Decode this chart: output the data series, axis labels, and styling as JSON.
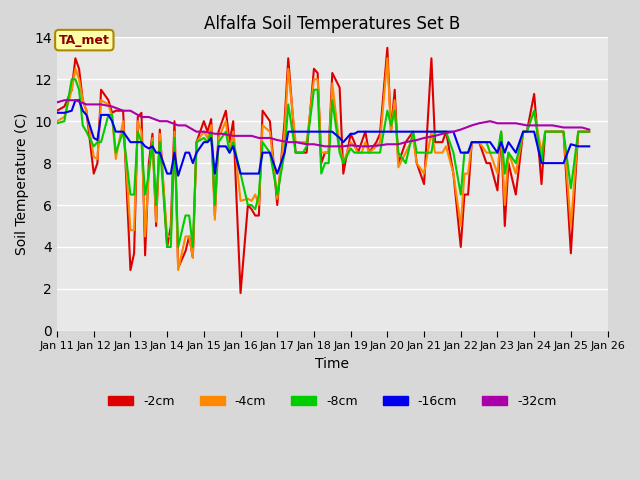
{
  "title": "Alfalfa Soil Temperatures Set B",
  "xlabel": "Time",
  "ylabel": "Soil Temperature (C)",
  "ylim": [
    0,
    14
  ],
  "yticks": [
    0,
    2,
    4,
    6,
    8,
    10,
    12,
    14
  ],
  "bg_color": "#e8e8e8",
  "plot_bg": "#f0f0f0",
  "annotation_label": "TA_met",
  "series": {
    "-2cm": {
      "color": "#dd0000",
      "x": [
        11.0,
        11.2,
        11.4,
        11.5,
        11.6,
        11.7,
        11.8,
        12.0,
        12.1,
        12.2,
        12.4,
        12.5,
        12.6,
        12.8,
        13.0,
        13.1,
        13.2,
        13.3,
        13.4,
        13.5,
        13.6,
        13.7,
        13.8,
        14.0,
        14.1,
        14.2,
        14.3,
        14.5,
        14.6,
        14.7,
        14.8,
        15.0,
        15.1,
        15.2,
        15.3,
        15.4,
        15.6,
        15.7,
        15.8,
        16.0,
        16.2,
        16.3,
        16.4,
        16.5,
        16.6,
        16.8,
        17.0,
        17.2,
        17.3,
        17.5,
        17.7,
        17.8,
        18.0,
        18.1,
        18.2,
        18.3,
        18.4,
        18.5,
        18.7,
        18.8,
        19.0,
        19.1,
        19.2,
        19.3,
        19.4,
        19.5,
        19.7,
        19.8,
        20.0,
        20.1,
        20.2,
        20.3,
        20.5,
        20.7,
        20.8,
        21.0,
        21.2,
        21.3,
        21.4,
        21.5,
        21.6,
        21.8,
        22.0,
        22.1,
        22.2,
        22.3,
        22.4,
        22.5,
        22.7,
        22.8,
        23.0,
        23.1,
        23.2,
        23.3,
        23.5,
        23.7,
        23.8,
        24.0,
        24.2,
        24.3,
        24.5,
        24.7,
        24.8,
        25.0,
        25.2,
        25.5
      ],
      "y": [
        10.5,
        10.7,
        11.5,
        13.0,
        12.5,
        11.0,
        10.5,
        7.5,
        8.0,
        11.5,
        11.0,
        10.4,
        10.5,
        10.5,
        2.9,
        3.7,
        10.2,
        10.4,
        3.6,
        8.0,
        9.4,
        5.0,
        9.6,
        4.0,
        5.0,
        10.0,
        3.0,
        3.8,
        4.5,
        3.5,
        9.0,
        10.0,
        9.5,
        10.1,
        5.5,
        9.5,
        10.5,
        9.0,
        10.0,
        1.8,
        6.0,
        5.8,
        5.5,
        5.5,
        10.5,
        10.0,
        6.0,
        10.0,
        13.0,
        8.5,
        8.5,
        8.5,
        12.5,
        12.3,
        8.0,
        8.5,
        8.5,
        12.3,
        11.6,
        7.5,
        9.4,
        9.0,
        8.5,
        9.0,
        9.5,
        8.5,
        9.0,
        9.4,
        13.5,
        9.5,
        11.5,
        8.0,
        9.0,
        9.5,
        8.0,
        7.0,
        13.0,
        9.0,
        9.0,
        9.0,
        9.5,
        7.5,
        4.0,
        6.5,
        6.5,
        9.0,
        9.0,
        9.0,
        8.0,
        8.0,
        6.7,
        9.5,
        5.0,
        8.0,
        6.5,
        9.5,
        9.5,
        11.3,
        7.0,
        9.5,
        9.5,
        9.5,
        9.5,
        3.7,
        9.5,
        9.5
      ]
    },
    "-4cm": {
      "color": "#ff8800",
      "x": [
        11.0,
        11.2,
        11.4,
        11.5,
        11.6,
        11.7,
        11.8,
        12.0,
        12.1,
        12.2,
        12.4,
        12.5,
        12.6,
        12.8,
        13.0,
        13.1,
        13.2,
        13.3,
        13.4,
        13.5,
        13.6,
        13.7,
        13.8,
        14.0,
        14.1,
        14.2,
        14.3,
        14.5,
        14.6,
        14.7,
        14.8,
        15.0,
        15.1,
        15.2,
        15.3,
        15.4,
        15.6,
        15.7,
        15.8,
        16.0,
        16.2,
        16.3,
        16.4,
        16.5,
        16.6,
        16.8,
        17.0,
        17.2,
        17.3,
        17.5,
        17.7,
        17.8,
        18.0,
        18.1,
        18.2,
        18.3,
        18.4,
        18.5,
        18.7,
        18.8,
        19.0,
        19.1,
        19.2,
        19.3,
        19.4,
        19.5,
        19.7,
        19.8,
        20.0,
        20.1,
        20.2,
        20.3,
        20.5,
        20.7,
        20.8,
        21.0,
        21.2,
        21.3,
        21.4,
        21.5,
        21.6,
        21.8,
        22.0,
        22.1,
        22.2,
        22.3,
        22.4,
        22.5,
        22.7,
        22.8,
        23.0,
        23.1,
        23.2,
        23.3,
        23.5,
        23.7,
        23.8,
        24.0,
        24.2,
        24.3,
        24.5,
        24.7,
        24.8,
        25.0,
        25.2,
        25.5
      ],
      "y": [
        10.0,
        10.2,
        11.5,
        12.5,
        12.0,
        11.0,
        10.5,
        8.3,
        8.2,
        11.0,
        10.8,
        10.2,
        8.2,
        10.0,
        4.8,
        4.8,
        10.0,
        9.5,
        4.5,
        7.5,
        9.2,
        5.2,
        9.4,
        4.5,
        4.5,
        9.5,
        2.9,
        4.5,
        4.5,
        3.5,
        9.0,
        9.5,
        9.2,
        9.8,
        5.3,
        9.2,
        10.0,
        8.5,
        9.5,
        6.2,
        6.3,
        6.2,
        6.5,
        6.0,
        9.8,
        9.5,
        6.3,
        9.5,
        12.5,
        9.0,
        9.0,
        9.0,
        12.0,
        12.0,
        8.5,
        8.5,
        8.5,
        11.8,
        8.8,
        8.0,
        9.0,
        8.8,
        8.5,
        8.5,
        9.0,
        8.5,
        8.8,
        9.0,
        13.0,
        9.5,
        11.0,
        7.8,
        8.5,
        9.2,
        8.0,
        7.5,
        9.5,
        8.5,
        8.5,
        8.5,
        8.8,
        7.5,
        5.0,
        7.5,
        7.5,
        9.0,
        9.0,
        9.0,
        8.5,
        8.5,
        7.5,
        9.5,
        6.0,
        8.5,
        7.5,
        9.5,
        9.5,
        10.5,
        8.5,
        9.5,
        9.5,
        9.5,
        9.5,
        5.0,
        9.5,
        9.5
      ]
    },
    "-8cm": {
      "color": "#00cc00",
      "x": [
        11.0,
        11.2,
        11.4,
        11.5,
        11.6,
        11.7,
        11.8,
        12.0,
        12.1,
        12.2,
        12.4,
        12.5,
        12.6,
        12.8,
        13.0,
        13.1,
        13.2,
        13.3,
        13.4,
        13.5,
        13.6,
        13.7,
        13.8,
        14.0,
        14.1,
        14.2,
        14.3,
        14.5,
        14.6,
        14.7,
        14.8,
        15.0,
        15.1,
        15.2,
        15.3,
        15.4,
        15.6,
        15.7,
        15.8,
        16.0,
        16.2,
        16.3,
        16.4,
        16.5,
        16.6,
        16.8,
        17.0,
        17.2,
        17.3,
        17.5,
        17.7,
        17.8,
        18.0,
        18.1,
        18.2,
        18.3,
        18.4,
        18.5,
        18.7,
        18.8,
        19.0,
        19.1,
        19.2,
        19.3,
        19.4,
        19.5,
        19.7,
        19.8,
        20.0,
        20.1,
        20.2,
        20.3,
        20.5,
        20.7,
        20.8,
        21.0,
        21.2,
        21.3,
        21.4,
        21.5,
        21.6,
        21.8,
        22.0,
        22.1,
        22.2,
        22.3,
        22.4,
        22.5,
        22.7,
        22.8,
        23.0,
        23.1,
        23.2,
        23.3,
        23.5,
        23.7,
        23.8,
        24.0,
        24.2,
        24.3,
        24.5,
        24.7,
        24.8,
        25.0,
        25.2,
        25.5
      ],
      "y": [
        9.9,
        10.0,
        12.0,
        12.0,
        11.5,
        9.8,
        9.5,
        8.8,
        9.0,
        9.0,
        10.3,
        10.3,
        8.5,
        9.5,
        6.5,
        6.5,
        9.5,
        9.0,
        6.5,
        7.5,
        9.0,
        6.0,
        9.0,
        4.0,
        4.0,
        9.2,
        4.0,
        5.5,
        5.5,
        4.0,
        9.0,
        9.2,
        9.0,
        9.5,
        6.0,
        9.0,
        9.5,
        8.5,
        9.0,
        7.5,
        6.0,
        6.0,
        5.8,
        6.5,
        9.0,
        8.5,
        6.5,
        8.5,
        10.8,
        8.5,
        8.5,
        8.8,
        11.5,
        11.5,
        7.5,
        8.0,
        8.0,
        11.0,
        8.5,
        8.0,
        8.7,
        8.5,
        8.5,
        8.5,
        8.5,
        8.5,
        8.5,
        8.5,
        10.5,
        9.8,
        10.5,
        8.5,
        8.0,
        9.5,
        8.5,
        8.5,
        8.5,
        9.5,
        9.5,
        9.5,
        9.5,
        8.5,
        6.5,
        8.5,
        8.5,
        9.0,
        9.0,
        9.0,
        9.0,
        8.5,
        8.5,
        9.5,
        7.5,
        8.5,
        8.0,
        9.5,
        9.5,
        10.5,
        8.0,
        9.5,
        9.5,
        9.5,
        9.5,
        6.8,
        9.5,
        9.5
      ]
    },
    "-16cm": {
      "color": "#0000ee",
      "x": [
        11.0,
        11.2,
        11.4,
        11.5,
        11.6,
        11.7,
        11.8,
        12.0,
        12.1,
        12.2,
        12.4,
        12.5,
        12.6,
        12.8,
        13.0,
        13.1,
        13.2,
        13.3,
        13.4,
        13.5,
        13.6,
        13.7,
        13.8,
        14.0,
        14.1,
        14.2,
        14.3,
        14.5,
        14.6,
        14.7,
        14.8,
        15.0,
        15.1,
        15.2,
        15.3,
        15.4,
        15.6,
        15.7,
        15.8,
        16.0,
        16.2,
        16.3,
        16.4,
        16.5,
        16.6,
        16.8,
        17.0,
        17.2,
        17.3,
        17.5,
        17.7,
        17.8,
        18.0,
        18.1,
        18.2,
        18.3,
        18.4,
        18.5,
        18.7,
        18.8,
        19.0,
        19.1,
        19.2,
        19.3,
        19.4,
        19.5,
        19.7,
        19.8,
        20.0,
        20.1,
        20.2,
        20.3,
        20.5,
        20.7,
        20.8,
        21.0,
        21.2,
        21.3,
        21.4,
        21.5,
        21.6,
        21.8,
        22.0,
        22.1,
        22.2,
        22.3,
        22.4,
        22.5,
        22.7,
        22.8,
        23.0,
        23.1,
        23.2,
        23.3,
        23.5,
        23.7,
        23.8,
        24.0,
        24.2,
        24.3,
        24.5,
        24.7,
        24.8,
        25.0,
        25.2,
        25.5
      ],
      "y": [
        10.4,
        10.4,
        10.5,
        11.0,
        11.0,
        10.5,
        10.3,
        9.2,
        9.1,
        10.3,
        10.3,
        10.0,
        9.5,
        9.5,
        9.0,
        9.0,
        9.0,
        9.0,
        8.8,
        8.7,
        8.8,
        8.5,
        8.5,
        7.5,
        7.5,
        8.5,
        7.4,
        8.5,
        8.5,
        8.0,
        8.5,
        9.0,
        9.0,
        9.2,
        7.5,
        8.8,
        8.8,
        8.5,
        8.8,
        7.5,
        7.5,
        7.5,
        7.5,
        7.5,
        8.5,
        8.5,
        7.5,
        8.5,
        9.5,
        9.5,
        9.5,
        9.5,
        9.5,
        9.5,
        9.5,
        9.5,
        9.5,
        9.5,
        9.2,
        9.0,
        9.4,
        9.4,
        9.5,
        9.5,
        9.5,
        9.5,
        9.5,
        9.5,
        9.5,
        9.5,
        9.5,
        9.5,
        9.5,
        9.5,
        9.5,
        9.5,
        9.5,
        9.5,
        9.5,
        9.5,
        9.5,
        9.5,
        8.5,
        8.5,
        8.5,
        9.0,
        9.0,
        9.0,
        9.0,
        9.0,
        8.5,
        9.0,
        8.5,
        9.0,
        8.5,
        9.5,
        9.5,
        9.5,
        8.0,
        8.0,
        8.0,
        8.0,
        8.0,
        8.9,
        8.8,
        8.8
      ]
    },
    "-32cm": {
      "color": "#aa00aa",
      "x": [
        11.0,
        11.2,
        11.5,
        11.8,
        12.0,
        12.2,
        12.5,
        12.8,
        13.0,
        13.3,
        13.5,
        13.8,
        14.0,
        14.3,
        14.5,
        14.8,
        15.0,
        15.3,
        15.5,
        15.8,
        16.0,
        16.3,
        16.5,
        16.8,
        17.0,
        17.3,
        17.5,
        17.8,
        18.0,
        18.3,
        18.5,
        18.8,
        19.0,
        19.3,
        19.5,
        19.8,
        20.0,
        20.3,
        20.5,
        20.8,
        21.0,
        21.3,
        21.5,
        21.8,
        22.0,
        22.3,
        22.5,
        22.8,
        23.0,
        23.3,
        23.5,
        23.8,
        24.0,
        24.3,
        24.5,
        24.8,
        25.0,
        25.3,
        25.5
      ],
      "y": [
        10.9,
        11.0,
        11.0,
        10.8,
        10.8,
        10.8,
        10.7,
        10.5,
        10.5,
        10.2,
        10.2,
        10.0,
        10.0,
        9.8,
        9.8,
        9.5,
        9.5,
        9.4,
        9.4,
        9.3,
        9.3,
        9.3,
        9.2,
        9.2,
        9.1,
        9.0,
        9.0,
        8.9,
        8.9,
        8.8,
        8.8,
        8.8,
        8.85,
        8.8,
        8.8,
        8.85,
        8.9,
        8.9,
        9.0,
        9.1,
        9.2,
        9.3,
        9.4,
        9.5,
        9.6,
        9.8,
        9.9,
        10.0,
        9.9,
        9.9,
        9.9,
        9.8,
        9.8,
        9.8,
        9.8,
        9.7,
        9.7,
        9.7,
        9.6
      ]
    }
  },
  "xtick_positions": [
    11,
    12,
    13,
    14,
    15,
    16,
    17,
    18,
    19,
    20,
    21,
    22,
    23,
    24,
    25,
    26
  ],
  "xtick_labels": [
    "Jan 11",
    "Jan 12",
    "Jan 13",
    "Jan 14",
    "Jan 15",
    "Jan 16",
    "Jan 17",
    "Jan 18",
    "Jan 19",
    "Jan 20",
    "Jan 21",
    "Jan 22",
    "Jan 23",
    "Jan 24",
    "Jan 25",
    "Jan 26"
  ],
  "legend_order": [
    "-2cm",
    "-4cm",
    "-8cm",
    "-16cm",
    "-32cm"
  ],
  "legend_colors": [
    "#dd0000",
    "#ff8800",
    "#00cc00",
    "#0000ee",
    "#aa00aa"
  ]
}
